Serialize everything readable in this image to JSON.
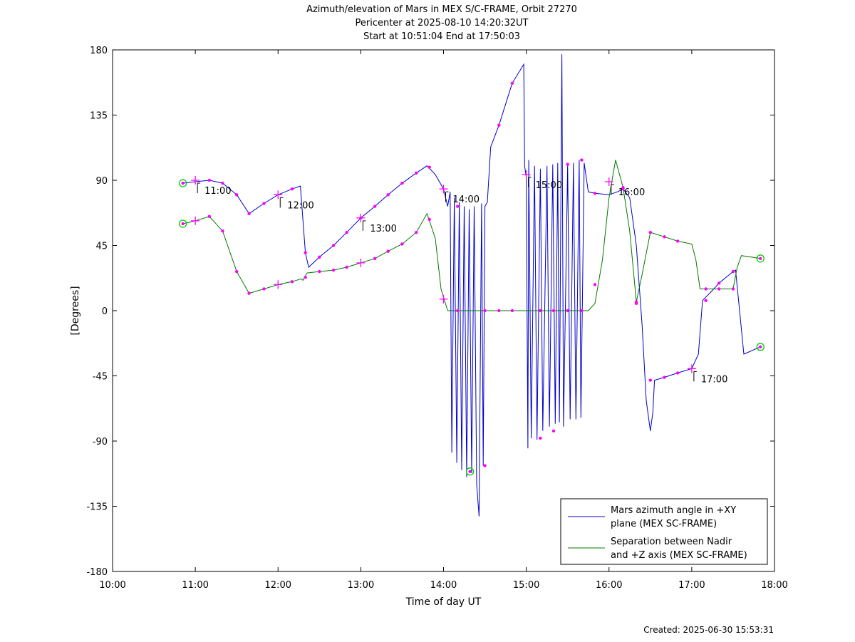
{
  "header": {
    "title_line1": "Azimuth/elevation of Mars in MEX S/C-FRAME,  Orbit 27270",
    "title_line2": "Pericenter at 2025-08-10 14:20:32UT",
    "title_line3": "Start at 10:51:04 End at 17:50:03"
  },
  "footer": {
    "created": "Created: 2025-06-30 15:53:31"
  },
  "colors": {
    "azimuth": "#0000cc",
    "separation": "#007700",
    "marker": "#ff00ff",
    "circle": "#00cc00"
  },
  "chart_data": {
    "type": "line",
    "xlabel": "Time of day UT",
    "ylabel": "[Degrees]",
    "xlim": [
      10.0,
      18.0
    ],
    "ylim": [
      -180,
      180
    ],
    "xticks": [
      10,
      11,
      12,
      13,
      14,
      15,
      16,
      17,
      18
    ],
    "xtick_labels": [
      "10:00",
      "11:00",
      "12:00",
      "13:00",
      "14:00",
      "15:00",
      "16:00",
      "17:00",
      "18:00"
    ],
    "yticks": [
      180,
      135,
      90,
      45,
      0,
      -45,
      -90,
      -135,
      -180
    ],
    "ytick_labels": [
      "180",
      "135",
      "90",
      "45",
      "0",
      "-45",
      "-90",
      "-135",
      "-180"
    ],
    "legend_position": "bottom-right",
    "hour_annotations": [
      {
        "label": "11:00",
        "x": 11.0,
        "y": 90
      },
      {
        "label": "12:00",
        "x": 12.0,
        "y": 80
      },
      {
        "label": "13:00",
        "x": 13.0,
        "y": 64
      },
      {
        "label": "14:00",
        "x": 14.0,
        "y": 84
      },
      {
        "label": "15:00",
        "x": 15.0,
        "y": 94
      },
      {
        "label": "16:00",
        "x": 16.0,
        "y": 89
      },
      {
        "label": "17:00",
        "x": 17.0,
        "y": -40
      }
    ],
    "series": [
      {
        "name": "Mars azimuth angle in +XY plane (MEX SC-FRAME)",
        "legend_lines": [
          "Mars azimuth angle in +XY",
          "plane (MEX SC-FRAME)"
        ],
        "points": [
          [
            10.85,
            88
          ],
          [
            11.0,
            89
          ],
          [
            11.17,
            90
          ],
          [
            11.33,
            88
          ],
          [
            11.5,
            80
          ],
          [
            11.65,
            67
          ],
          [
            11.83,
            74
          ],
          [
            12.0,
            80
          ],
          [
            12.17,
            84
          ],
          [
            12.27,
            86
          ],
          [
            12.33,
            40
          ],
          [
            12.37,
            30
          ],
          [
            12.5,
            37
          ],
          [
            12.67,
            45
          ],
          [
            12.83,
            54
          ],
          [
            13.0,
            64
          ],
          [
            13.17,
            72
          ],
          [
            13.33,
            80
          ],
          [
            13.5,
            88
          ],
          [
            13.67,
            95
          ],
          [
            13.8,
            100
          ],
          [
            13.9,
            94
          ],
          [
            14.0,
            84
          ],
          [
            14.05,
            72
          ],
          [
            14.08,
            82
          ],
          [
            14.1,
            -98
          ],
          [
            14.13,
            78
          ],
          [
            14.16,
            -105
          ],
          [
            14.19,
            75
          ],
          [
            14.22,
            -110
          ],
          [
            14.25,
            72
          ],
          [
            14.28,
            -115
          ],
          [
            14.31,
            70
          ],
          [
            14.34,
            -112
          ],
          [
            14.37,
            72
          ],
          [
            14.4,
            -120
          ],
          [
            14.43,
            -142
          ],
          [
            14.46,
            74
          ],
          [
            14.48,
            -107
          ],
          [
            14.5,
            72
          ],
          [
            14.53,
            75
          ],
          [
            14.57,
            113
          ],
          [
            14.67,
            128
          ],
          [
            14.83,
            157
          ],
          [
            14.97,
            170
          ],
          [
            14.98,
            100
          ],
          [
            15.0,
            92
          ],
          [
            15.02,
            -95
          ],
          [
            15.03,
            104
          ],
          [
            15.06,
            -88
          ],
          [
            15.1,
            100
          ],
          [
            15.13,
            -89
          ],
          [
            15.17,
            98
          ],
          [
            15.2,
            -83
          ],
          [
            15.25,
            100
          ],
          [
            15.28,
            -80
          ],
          [
            15.32,
            101
          ],
          [
            15.35,
            -78
          ],
          [
            15.38,
            102
          ],
          [
            15.4,
            -77
          ],
          [
            15.43,
            177
          ],
          [
            15.45,
            -80
          ],
          [
            15.5,
            101
          ],
          [
            15.53,
            -75
          ],
          [
            15.57,
            102
          ],
          [
            15.6,
            -75
          ],
          [
            15.64,
            104
          ],
          [
            15.66,
            -74
          ],
          [
            15.7,
            102
          ],
          [
            15.75,
            82
          ],
          [
            15.83,
            81
          ],
          [
            16.0,
            80
          ],
          [
            16.1,
            82
          ],
          [
            16.17,
            84
          ],
          [
            16.25,
            78
          ],
          [
            16.33,
            45
          ],
          [
            16.4,
            -10
          ],
          [
            16.45,
            -62
          ],
          [
            16.5,
            -83
          ],
          [
            16.53,
            -70
          ],
          [
            16.55,
            -48
          ],
          [
            16.67,
            -46
          ],
          [
            16.83,
            -43
          ],
          [
            17.0,
            -40
          ],
          [
            17.08,
            -30
          ],
          [
            17.13,
            7
          ],
          [
            17.25,
            14
          ],
          [
            17.33,
            19
          ],
          [
            17.5,
            27
          ],
          [
            17.53,
            28
          ],
          [
            17.63,
            -30
          ],
          [
            17.83,
            -25
          ]
        ],
        "markers": [
          [
            11.17,
            90
          ],
          [
            11.33,
            88
          ],
          [
            11.5,
            80
          ],
          [
            11.65,
            67
          ],
          [
            11.83,
            74
          ],
          [
            12.17,
            84
          ],
          [
            12.33,
            40
          ],
          [
            12.5,
            37
          ],
          [
            12.67,
            45
          ],
          [
            12.83,
            54
          ],
          [
            13.17,
            72
          ],
          [
            13.33,
            80
          ],
          [
            13.5,
            88
          ],
          [
            13.67,
            95
          ],
          [
            13.83,
            99
          ],
          [
            14.67,
            128
          ],
          [
            14.83,
            157
          ],
          [
            15.17,
            -88
          ],
          [
            15.33,
            -83
          ],
          [
            15.5,
            101
          ],
          [
            15.67,
            104
          ],
          [
            15.83,
            81
          ],
          [
            16.17,
            84
          ],
          [
            16.33,
            5
          ],
          [
            16.5,
            -48
          ],
          [
            16.67,
            -46
          ],
          [
            16.83,
            -43
          ],
          [
            17.17,
            7
          ],
          [
            17.33,
            19
          ],
          [
            17.5,
            27
          ],
          [
            14.5,
            -107
          ],
          [
            14.17,
            72
          ],
          [
            13.0,
            64
          ]
        ],
        "crosses": [
          [
            11.0,
            90
          ],
          [
            12.0,
            80
          ],
          [
            13.0,
            64
          ],
          [
            14.0,
            84
          ],
          [
            15.0,
            94
          ],
          [
            16.0,
            89
          ],
          [
            17.0,
            -40
          ]
        ],
        "end_circles": [
          [
            10.85,
            88
          ],
          [
            17.83,
            -25
          ]
        ]
      },
      {
        "name": "Separation between Nadir and +Z axis (MEX SC-FRAME)",
        "legend_lines": [
          "Separation between Nadir",
          "and +Z axis (MEX SC-FRAME)"
        ],
        "points": [
          [
            10.85,
            60
          ],
          [
            11.0,
            62
          ],
          [
            11.17,
            65
          ],
          [
            11.33,
            55
          ],
          [
            11.5,
            27
          ],
          [
            11.65,
            12
          ],
          [
            11.83,
            15
          ],
          [
            12.0,
            18
          ],
          [
            12.17,
            20
          ],
          [
            12.28,
            22
          ],
          [
            12.3,
            21
          ],
          [
            12.35,
            26
          ],
          [
            12.5,
            27
          ],
          [
            12.67,
            28
          ],
          [
            12.83,
            30
          ],
          [
            13.0,
            33
          ],
          [
            13.17,
            36
          ],
          [
            13.33,
            41
          ],
          [
            13.5,
            46
          ],
          [
            13.67,
            54
          ],
          [
            13.8,
            67
          ],
          [
            13.9,
            50
          ],
          [
            13.97,
            15
          ],
          [
            14.05,
            0
          ],
          [
            15.75,
            0
          ],
          [
            15.83,
            5
          ],
          [
            15.92,
            35
          ],
          [
            16.0,
            78
          ],
          [
            16.08,
            104
          ],
          [
            16.17,
            85
          ],
          [
            16.25,
            55
          ],
          [
            16.33,
            6
          ],
          [
            16.4,
            25
          ],
          [
            16.5,
            54
          ],
          [
            16.67,
            51
          ],
          [
            16.83,
            48
          ],
          [
            17.0,
            46
          ],
          [
            17.05,
            35
          ],
          [
            17.1,
            15
          ],
          [
            17.25,
            15
          ],
          [
            17.5,
            15
          ],
          [
            17.55,
            30
          ],
          [
            17.6,
            38
          ],
          [
            17.83,
            36
          ]
        ],
        "markers": [
          [
            11.17,
            65
          ],
          [
            11.33,
            55
          ],
          [
            11.5,
            27
          ],
          [
            11.65,
            12
          ],
          [
            11.83,
            15
          ],
          [
            12.17,
            20
          ],
          [
            12.33,
            23
          ],
          [
            12.5,
            27
          ],
          [
            12.67,
            28
          ],
          [
            12.83,
            30
          ],
          [
            13.17,
            36
          ],
          [
            13.33,
            41
          ],
          [
            13.5,
            46
          ],
          [
            13.67,
            54
          ],
          [
            13.83,
            63
          ],
          [
            14.17,
            0
          ],
          [
            14.5,
            0
          ],
          [
            14.67,
            0
          ],
          [
            14.83,
            0
          ],
          [
            15.17,
            0
          ],
          [
            15.33,
            0
          ],
          [
            15.5,
            0
          ],
          [
            15.67,
            0
          ],
          [
            15.83,
            18
          ],
          [
            16.17,
            85
          ],
          [
            16.33,
            6
          ],
          [
            16.5,
            54
          ],
          [
            16.67,
            51
          ],
          [
            16.83,
            48
          ],
          [
            17.17,
            15
          ],
          [
            17.33,
            15
          ],
          [
            17.5,
            15
          ]
        ],
        "crosses": [
          [
            11.0,
            62
          ],
          [
            12.0,
            18
          ],
          [
            13.0,
            33
          ],
          [
            14.0,
            8
          ]
        ],
        "end_circles": [
          [
            10.85,
            60
          ],
          [
            17.83,
            36
          ],
          [
            14.32,
            -111
          ]
        ]
      }
    ]
  }
}
